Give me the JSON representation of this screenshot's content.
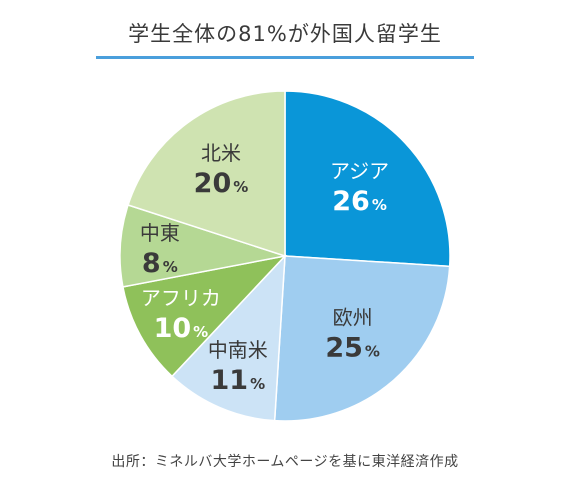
{
  "title": "学生全体の81%が外国人留学生",
  "source": "出所：ミネルバ大学ホームページを基に東洋経済作成",
  "chart_data": {
    "type": "pie",
    "title": "学生全体の81%が外国人留学生",
    "slices": [
      {
        "label": "アジア",
        "value": 26,
        "unit": "%",
        "color": "#0a96d8",
        "text_color": "#ffffff"
      },
      {
        "label": "欧州",
        "value": 25,
        "unit": "%",
        "color": "#9fcdf0",
        "text_color": "#3a3a3a"
      },
      {
        "label": "中南米",
        "value": 11,
        "unit": "%",
        "color": "#cce3f6",
        "text_color": "#3a3a3a"
      },
      {
        "label": "アフリカ",
        "value": 10,
        "unit": "%",
        "color": "#8fc15a",
        "text_color": "#ffffff"
      },
      {
        "label": "中東",
        "value": 8,
        "unit": "%",
        "color": "#b5d894",
        "text_color": "#3a3a3a"
      },
      {
        "label": "北米",
        "value": 20,
        "unit": "%",
        "color": "#cfe3b1",
        "text_color": "#3a3a3a"
      }
    ]
  }
}
